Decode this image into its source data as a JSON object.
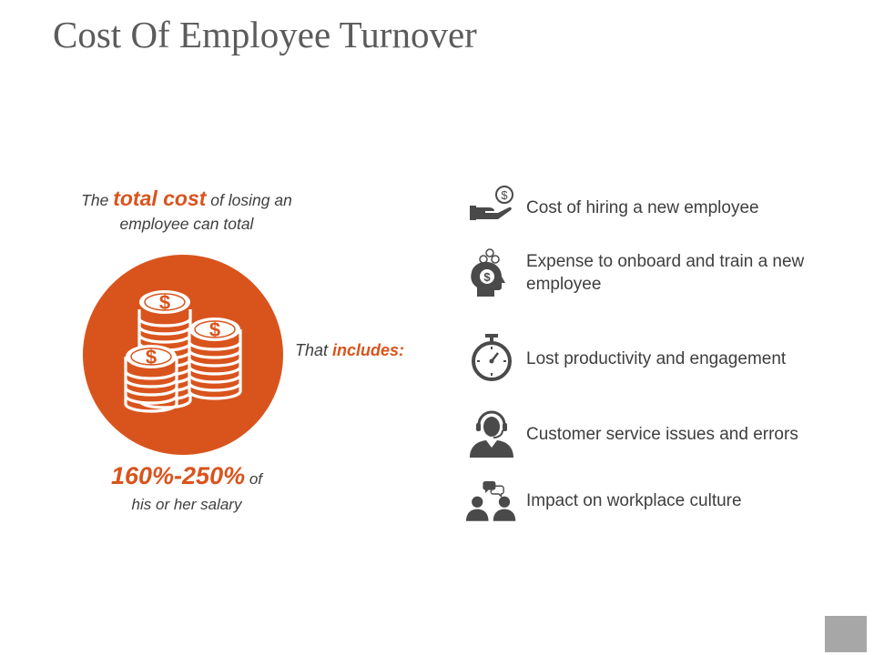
{
  "slide": {
    "title": "Cost Of Employee Turnover"
  },
  "intro": {
    "prefix": "The ",
    "highlight": "total cost",
    "suffix": " of losing an",
    "line2": "employee can total"
  },
  "stat": {
    "value": "160%-250%",
    "suffix": " of",
    "line2": "his or her salary"
  },
  "includes": {
    "prefix": "That ",
    "highlight": "includes:"
  },
  "items": [
    {
      "icon": "hand-coin-icon",
      "text": "Cost of hiring a new employee"
    },
    {
      "icon": "head-money-icon",
      "text": "Expense to onboard and train a new employee"
    },
    {
      "icon": "stopwatch-icon",
      "text": "Lost productivity and engagement"
    },
    {
      "icon": "headset-agent-icon",
      "text": "Customer service issues and errors"
    },
    {
      "icon": "people-chat-icon",
      "text": "Impact on workplace culture"
    }
  ],
  "colors": {
    "accent": "#d9541d",
    "icon": "#4a4a4a",
    "corner": "#a7a7a7"
  }
}
